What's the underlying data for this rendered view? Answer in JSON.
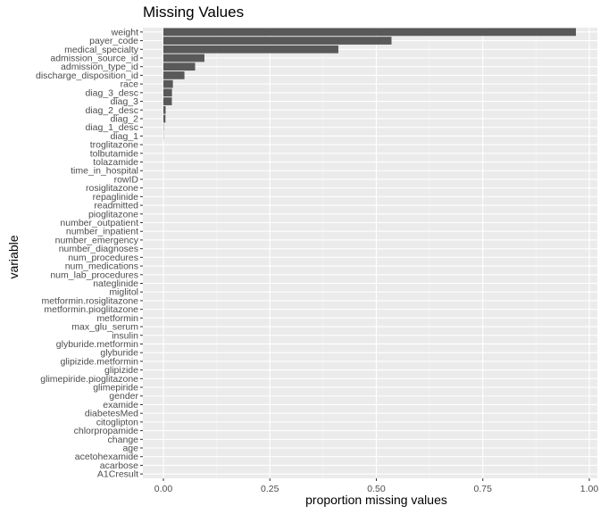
{
  "chart_data": {
    "type": "bar",
    "orientation": "horizontal",
    "title": "Missing Values",
    "xlabel": "proportion missing values",
    "ylabel": "variable",
    "xlim": [
      0,
      1
    ],
    "x_ticks": [
      0,
      0.25,
      0.5,
      0.75,
      1
    ],
    "x_tick_labels": [
      "0.00",
      "0.25",
      "0.50",
      "0.75",
      "1.00"
    ],
    "grid": true,
    "bar_color": "#595959",
    "panel_color": "#ebebeb",
    "categories": [
      "weight",
      "payer_code",
      "medical_specialty",
      "admission_source_id",
      "admission_type_id",
      "discharge_disposition_id",
      "race",
      "diag_3_desc",
      "diag_3",
      "diag_2_desc",
      "diag_2",
      "diag_1_desc",
      "diag_1",
      "troglitazone",
      "tolbutamide",
      "tolazamide",
      "time_in_hospital",
      "rowID",
      "rosiglitazone",
      "repaglinide",
      "readmitted",
      "pioglitazone",
      "number_outpatient",
      "number_inpatient",
      "number_emergency",
      "number_diagnoses",
      "num_procedures",
      "num_medications",
      "num_lab_procedures",
      "nateglinide",
      "miglitol",
      "metformin.rosiglitazone",
      "metformin.pioglitazone",
      "metformin",
      "max_glu_serum",
      "insulin",
      "glyburide.metformin",
      "glyburide",
      "glipizide.metformin",
      "glipizide",
      "glimepiride.pioglitazone",
      "glimepiride",
      "gender",
      "examide",
      "diabetesMed",
      "citoglipton",
      "chlorpropamide",
      "change",
      "age",
      "acetohexamide",
      "acarbose",
      "A1Cresult"
    ],
    "values": [
      0.9686,
      0.5356,
      0.4108,
      0.0963,
      0.0745,
      0.0494,
      0.0223,
      0.0202,
      0.0199,
      0.0052,
      0.0048,
      0.0006,
      0.0004,
      0,
      0,
      0,
      0,
      0,
      0,
      0,
      0,
      0,
      0,
      0,
      0,
      0,
      0,
      0,
      0,
      0,
      0,
      0,
      0,
      0,
      0,
      0,
      0,
      0,
      0,
      0,
      0,
      0,
      0,
      0,
      0,
      0,
      0,
      0,
      0,
      0,
      0,
      0
    ]
  }
}
